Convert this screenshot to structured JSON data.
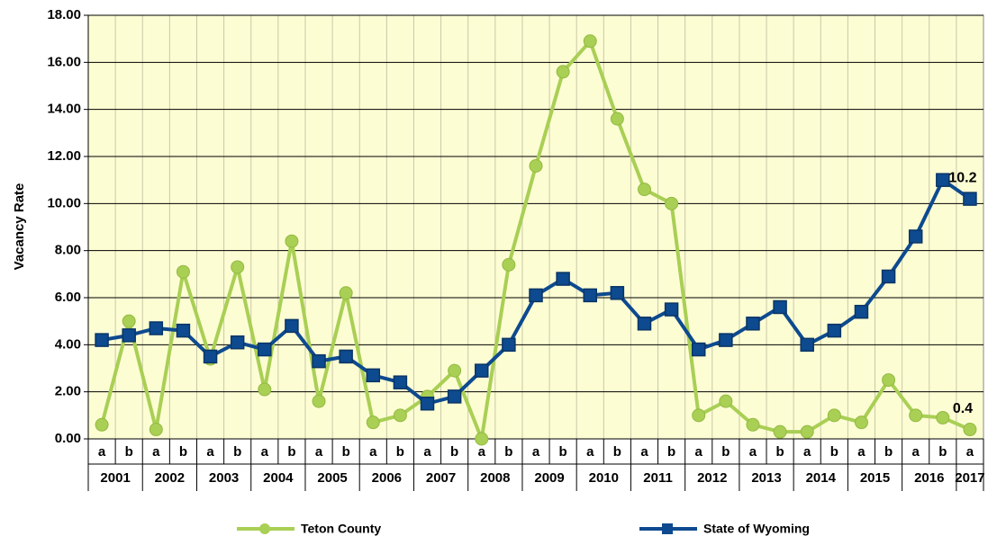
{
  "chart_data": {
    "type": "line",
    "y_label": "Vacancy Rate",
    "categories": [
      "a",
      "b",
      "a",
      "b",
      "a",
      "b",
      "a",
      "b",
      "a",
      "b",
      "a",
      "b",
      "a",
      "b",
      "a",
      "b",
      "a",
      "b",
      "a",
      "b",
      "a",
      "b",
      "a",
      "b",
      "a",
      "b",
      "a",
      "b",
      "a",
      "b",
      "a",
      "b",
      "a"
    ],
    "year_groups": [
      "2001",
      "2002",
      "2003",
      "2004",
      "2005",
      "2006",
      "2007",
      "2008",
      "2009",
      "2010",
      "2011",
      "2012",
      "2013",
      "2014",
      "2015",
      "2016",
      "2017"
    ],
    "series": [
      {
        "name": "Teton County",
        "color": "#a9cf55",
        "marker": "circle",
        "values": [
          0.6,
          5.0,
          0.4,
          7.1,
          3.4,
          7.3,
          2.1,
          8.4,
          1.6,
          6.2,
          0.7,
          1.0,
          1.8,
          2.9,
          0.0,
          7.4,
          11.6,
          15.6,
          16.9,
          13.6,
          10.6,
          10.0,
          1.0,
          1.6,
          0.6,
          0.3,
          0.3,
          1.0,
          0.7,
          2.5,
          1.0,
          0.9,
          0.4
        ]
      },
      {
        "name": "State of Wyoming",
        "color": "#0d4a8f",
        "marker": "square",
        "values": [
          4.2,
          4.4,
          4.7,
          4.6,
          3.5,
          4.1,
          3.8,
          4.8,
          3.3,
          3.5,
          2.7,
          2.4,
          1.5,
          1.8,
          2.9,
          4.0,
          6.1,
          6.8,
          6.1,
          6.2,
          4.9,
          5.5,
          3.8,
          4.2,
          4.9,
          5.6,
          4.0,
          4.6,
          5.4,
          6.9,
          8.6,
          11.0,
          10.2
        ]
      }
    ],
    "data_labels": "last",
    "ylim": [
      0,
      18
    ],
    "yticks": [
      {
        "value": 0,
        "label": "0.00"
      },
      {
        "value": 2,
        "label": "2.00"
      },
      {
        "value": 4,
        "label": "4.00"
      },
      {
        "value": 6,
        "label": "6.00"
      },
      {
        "value": 8,
        "label": "8.00"
      },
      {
        "value": 10,
        "label": "10.00"
      },
      {
        "value": 12,
        "label": "12.00"
      },
      {
        "value": 14,
        "label": "14.00"
      },
      {
        "value": 16,
        "label": "16.00"
      },
      {
        "value": 18,
        "label": "18.00"
      }
    ],
    "grid": true,
    "legend": "bottom",
    "plot_background": "#fdfdd4"
  }
}
